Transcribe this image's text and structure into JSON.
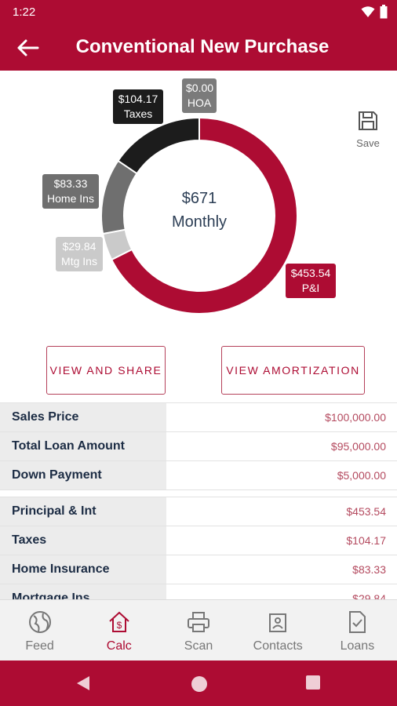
{
  "status_bar": {
    "time": "1:22"
  },
  "app_bar": {
    "title": "Conventional New Purchase"
  },
  "chart_data": {
    "type": "pie",
    "center_amount": "$671",
    "center_label": "Monthly",
    "slices": [
      {
        "label": "P&I",
        "value_text": "$453.54",
        "value": 453.54,
        "color": "#ad0c33"
      },
      {
        "label": "Mtg Ins",
        "value_text": "$29.84",
        "value": 29.84,
        "color": "#cacaca"
      },
      {
        "label": "Home Ins",
        "value_text": "$83.33",
        "value": 83.33,
        "color": "#6f6f6f"
      },
      {
        "label": "Taxes",
        "value_text": "$104.17",
        "value": 104.17,
        "color": "#1c1c1c"
      },
      {
        "label": "HOA",
        "value_text": "$0.00",
        "value": 0,
        "color": "#7b7b7b"
      }
    ]
  },
  "labels": {
    "taxes": {
      "value": "$104.17",
      "name": "Taxes"
    },
    "hoa": {
      "value": "$0.00",
      "name": "HOA"
    },
    "home_ins": {
      "value": "$83.33",
      "name": "Home Ins"
    },
    "mtg_ins": {
      "value": "$29.84",
      "name": "Mtg Ins"
    },
    "pi": {
      "value": "$453.54",
      "name": "P&I"
    }
  },
  "save": {
    "label": "Save"
  },
  "actions": {
    "view_share": "VIEW AND SHARE",
    "view_amortization": "VIEW AMORTIZATION"
  },
  "loan_table": [
    {
      "label": "Sales Price",
      "value": "$100,000.00"
    },
    {
      "label": "Total Loan Amount",
      "value": "$95,000.00"
    },
    {
      "label": "Down Payment",
      "value": "$5,000.00"
    }
  ],
  "payment_table": [
    {
      "label": "Principal & Int",
      "value": "$453.54"
    },
    {
      "label": "Taxes",
      "value": "$104.17"
    },
    {
      "label": "Home Insurance",
      "value": "$83.33"
    },
    {
      "label": "Mortgage Ins",
      "value": "$29.84"
    }
  ],
  "bottom_nav": {
    "feed": "Feed",
    "calc": "Calc",
    "scan": "Scan",
    "contacts": "Contacts",
    "loans": "Loans"
  },
  "colors": {
    "primary": "#ad0c33",
    "value_text": "#b44a5f",
    "label_bg": "#ececec"
  }
}
